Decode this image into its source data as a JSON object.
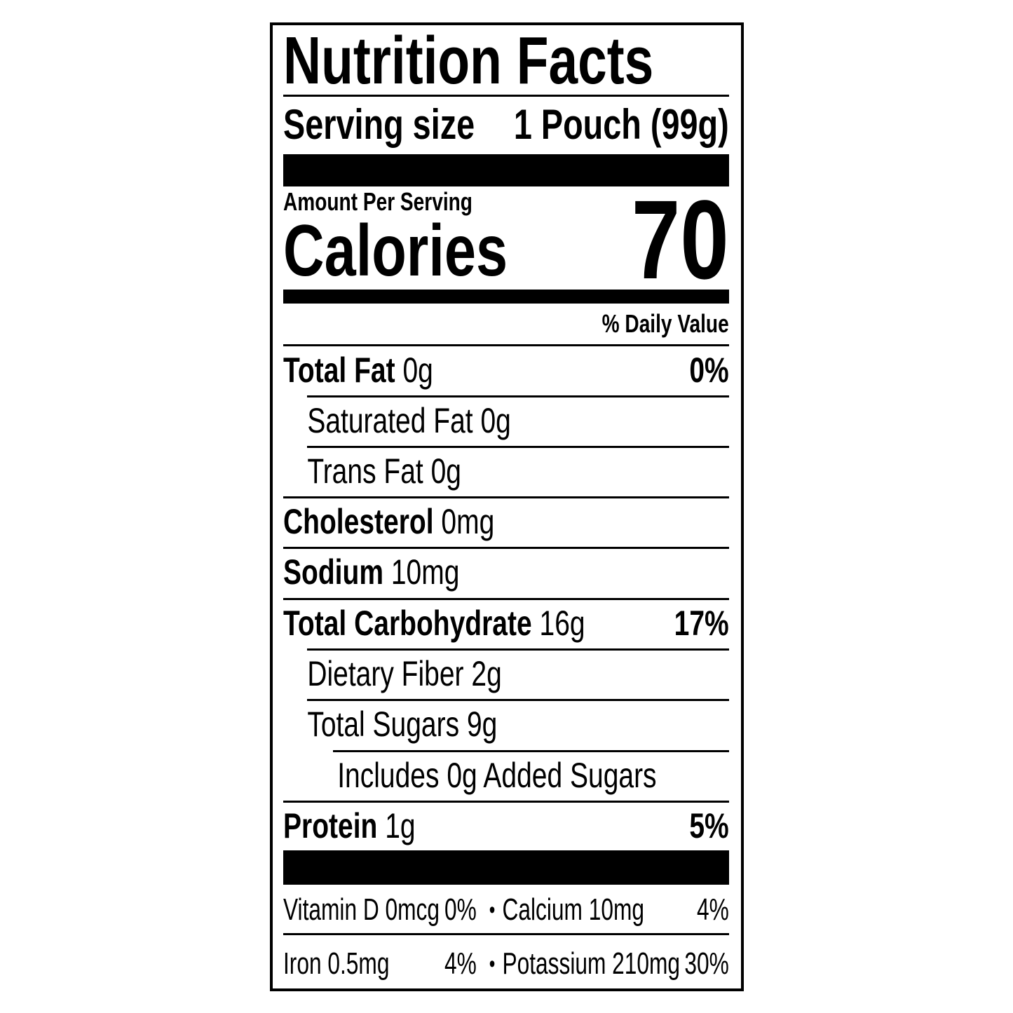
{
  "title": "Nutrition Facts",
  "serving": {
    "label": "Serving size",
    "value": "1 Pouch (99g)"
  },
  "amount_per_serving": "Amount Per Serving",
  "calories": {
    "label": "Calories",
    "value": "70"
  },
  "daily_value_header": "% Daily Value",
  "nutrients": [
    {
      "name": "Total Fat",
      "amount": "0g",
      "dv": "0%"
    },
    {
      "name": "Saturated Fat",
      "amount": "0g",
      "dv": ""
    },
    {
      "name": "Trans Fat",
      "amount": "0g",
      "dv": ""
    },
    {
      "name": "Cholesterol",
      "amount": "0mg",
      "dv": ""
    },
    {
      "name": "Sodium",
      "amount": "10mg",
      "dv": ""
    },
    {
      "name": "Total Carbohydrate",
      "amount": "16g",
      "dv": "17%"
    },
    {
      "name": "Dietary Fiber",
      "amount": "2g",
      "dv": ""
    },
    {
      "name": "Total Sugars",
      "amount": "9g",
      "dv": ""
    },
    {
      "name": "Includes 0g Added Sugars",
      "amount": "",
      "dv": ""
    },
    {
      "name": "Protein",
      "amount": "1g",
      "dv": "5%"
    }
  ],
  "vitamins": [
    {
      "name": "Vitamin D 0mcg",
      "dv": "0%"
    },
    {
      "name": "Calcium 10mg",
      "dv": "4%"
    },
    {
      "name": "Iron 0.5mg",
      "dv": "4%"
    },
    {
      "name": "Potassium 210mg",
      "dv": "30%"
    }
  ],
  "bullet": "•"
}
